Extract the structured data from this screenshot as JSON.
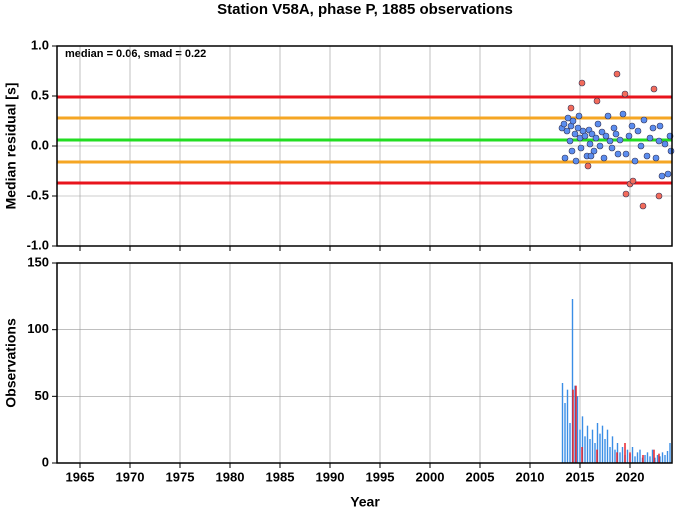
{
  "chart_data": [
    {
      "type": "scatter",
      "title": "Station V58A, phase P, 1885 observations",
      "annotation": "median = 0.06, smad = 0.22",
      "ylabel": "Median residual [s]",
      "xlim": [
        1962.7,
        2024.2
      ],
      "xticks": [
        1965,
        1970,
        1975,
        1980,
        1985,
        1990,
        1995,
        2000,
        2005,
        2010,
        2015,
        2020
      ],
      "ylim": [
        -1.0,
        1.0
      ],
      "yticks": [
        {
          "value": -1.0,
          "label": "-1.0"
        },
        -0.5,
        {
          "value": 0.0,
          "label": "0.0"
        },
        0.5,
        {
          "value": 1.0,
          "label": "1.0"
        }
      ],
      "grid": true,
      "hlines": [
        {
          "value": 0.49,
          "color": "#e8141c"
        },
        {
          "value": 0.28,
          "color": "#f5a623"
        },
        {
          "value": 0.06,
          "color": "#22dd22"
        },
        {
          "value": -0.16,
          "color": "#f5a623"
        },
        {
          "value": -0.37,
          "color": "#e8141c"
        }
      ],
      "series": [
        {
          "color": "#5b8def",
          "x": [
            2013.2,
            2013.4,
            2013.5,
            2013.7,
            2013.8,
            2014.0,
            2014.1,
            2014.2,
            2014.3,
            2014.5,
            2014.6,
            2014.8,
            2015.0,
            2015.1,
            2015.3,
            2015.5,
            2015.7,
            2015.9,
            2016.0,
            2016.2,
            2016.4,
            2016.6,
            2016.8,
            2017.0,
            2017.2,
            2017.4,
            2017.6,
            2017.8,
            2018.0,
            2018.2,
            2018.4,
            2018.6,
            2018.8,
            2019.0,
            2019.3,
            2019.6,
            2019.9,
            2020.2,
            2020.5,
            2020.8,
            2021.1,
            2021.4,
            2021.7,
            2022.0,
            2022.3,
            2022.6,
            2022.9,
            2023.2,
            2023.5,
            2023.8,
            2024.0,
            2024.1,
            2023.0,
            2016.1,
            2014.9
          ],
          "values": [
            0.18,
            0.22,
            -0.12,
            0.15,
            0.28,
            0.05,
            0.2,
            -0.05,
            0.25,
            0.12,
            -0.15,
            0.18,
            0.08,
            -0.02,
            0.15,
            0.1,
            -0.1,
            0.16,
            0.02,
            0.12,
            -0.05,
            0.08,
            0.22,
            0.0,
            0.14,
            -0.12,
            0.1,
            0.3,
            0.05,
            -0.02,
            0.18,
            0.12,
            -0.08,
            0.06,
            0.32,
            -0.08,
            0.1,
            0.2,
            -0.15,
            0.15,
            0.0,
            0.26,
            -0.1,
            0.08,
            0.18,
            -0.12,
            0.05,
            -0.3,
            0.02,
            -0.28,
            0.1,
            -0.05,
            0.2,
            -0.1,
            0.3
          ]
        },
        {
          "color": "#f26b5b",
          "x": [
            2015.2,
            2016.7,
            2015.8,
            2018.7,
            2019.5,
            2019.6,
            2020.0,
            2020.3,
            2021.3,
            2022.4,
            2022.9,
            2014.1
          ],
          "values": [
            0.63,
            0.45,
            -0.2,
            0.72,
            0.52,
            -0.48,
            -0.38,
            -0.35,
            -0.6,
            0.57,
            -0.5,
            0.38
          ]
        }
      ]
    },
    {
      "type": "bar",
      "xlabel": "Year",
      "ylabel": "Observations",
      "xlim": [
        1962.7,
        2024.2
      ],
      "xticks": [
        1965,
        1970,
        1975,
        1980,
        1985,
        1990,
        1995,
        2000,
        2005,
        2010,
        2015,
        2020
      ],
      "ylim": [
        0,
        150
      ],
      "yticks": [
        0,
        50,
        100,
        150
      ],
      "grid": true,
      "series": [
        {
          "color": "#3a8ee6",
          "x": [
            2013.25,
            2013.5,
            2013.75,
            2014.0,
            2014.25,
            2014.5,
            2014.75,
            2015.0,
            2015.25,
            2015.5,
            2015.75,
            2016.0,
            2016.25,
            2016.5,
            2016.75,
            2017.0,
            2017.25,
            2017.5,
            2017.75,
            2018.0,
            2018.25,
            2018.5,
            2018.75,
            2019.0,
            2019.25,
            2019.5,
            2019.75,
            2020.0,
            2020.25,
            2020.5,
            2020.75,
            2021.0,
            2021.25,
            2021.5,
            2021.75,
            2022.0,
            2022.25,
            2022.5,
            2022.75,
            2023.0,
            2023.25,
            2023.5,
            2023.75,
            2024.0
          ],
          "values": [
            60,
            45,
            55,
            30,
            123,
            58,
            50,
            25,
            35,
            20,
            28,
            18,
            25,
            15,
            30,
            22,
            28,
            18,
            25,
            12,
            20,
            10,
            15,
            8,
            12,
            6,
            10,
            7,
            12,
            5,
            8,
            10,
            4,
            6,
            8,
            5,
            10,
            4,
            6,
            5,
            8,
            6,
            9,
            15
          ]
        },
        {
          "color": "#e8141c",
          "x": [
            2014.3,
            2014.6,
            2015.2,
            2016.7,
            2018.7,
            2019.5,
            2020.0,
            2021.3,
            2022.4,
            2022.9
          ],
          "values": [
            55,
            58,
            12,
            10,
            8,
            15,
            8,
            6,
            10,
            7
          ]
        }
      ]
    }
  ]
}
